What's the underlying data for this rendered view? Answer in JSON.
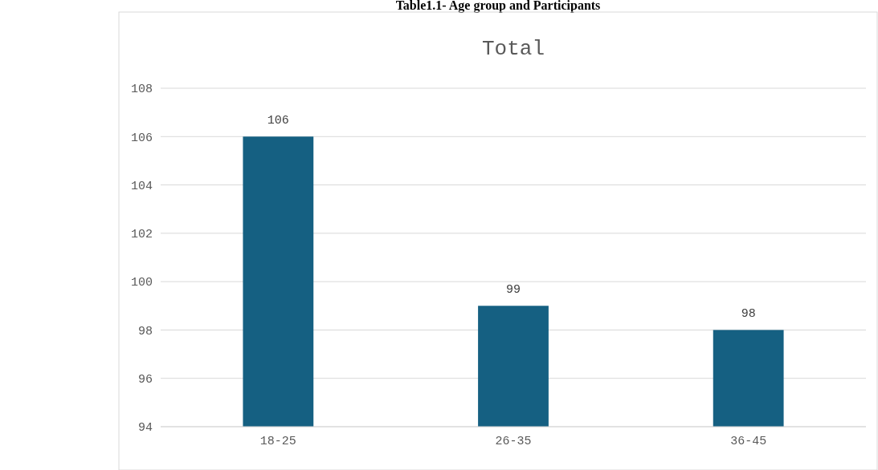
{
  "chart_data": {
    "type": "bar",
    "title": "Table1.1- Age group and Participants",
    "subtitle": "Total",
    "categories": [
      "18-25",
      "26-35",
      "36-45"
    ],
    "values": [
      106,
      99,
      98
    ],
    "color": "#156082",
    "ylim": [
      94,
      108
    ],
    "yticks": [
      94,
      96,
      98,
      100,
      102,
      104,
      106,
      108
    ],
    "grid": "y",
    "data_labels": true
  }
}
